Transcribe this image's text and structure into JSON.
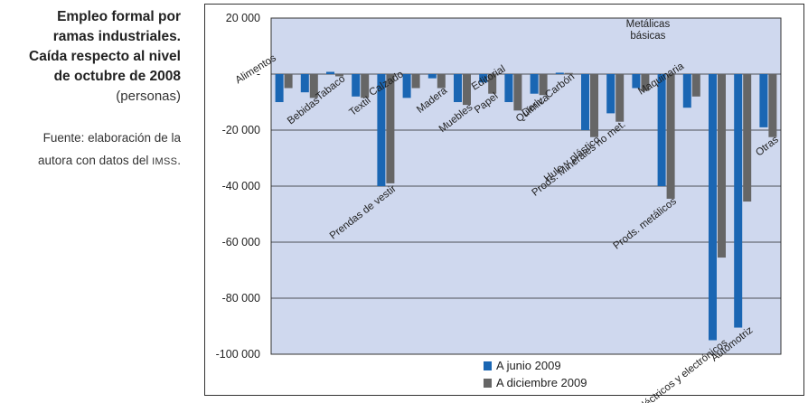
{
  "side": {
    "title_lines": [
      "Empleo formal por",
      "ramas industriales.",
      "Caída respecto al nivel",
      "de octubre de 2008"
    ],
    "unit": "(personas)",
    "source_line1": "Fuente: elaboración de la",
    "source_line2": "autora con datos del",
    "source_acronym": "IMSS",
    "source_end": "."
  },
  "chart_data": {
    "type": "bar",
    "ylim": [
      -100000,
      20000
    ],
    "yticks": [
      "20 000",
      "-",
      "-20 000",
      "-40 000",
      "-60 000",
      "-80 000",
      "-100 000"
    ],
    "grid": true,
    "legend_position": "bottom-center",
    "categories": [
      "Alimentos",
      "Bebidas",
      "Tabaco",
      "Textil",
      "Prendas de vestir",
      "Calzado",
      "Madera",
      "Muebles",
      "Papel",
      "Editorial",
      "Química",
      "Deriv. Carbón",
      "Hule y plástico",
      "Prods. Minerales no met.",
      "Metálicas básicas",
      "Prods. metálicos",
      "Maquinaria",
      "Eléctricos y electrónicos",
      "Automotriz",
      "Otras"
    ],
    "series": [
      {
        "name": "A junio 2009",
        "color": "#1a66b3",
        "values": [
          -10000,
          -6500,
          800,
          -8000,
          -40000,
          -8500,
          -1500,
          -10000,
          -3000,
          -10000,
          -7000,
          500,
          -20000,
          -14000,
          -5000,
          -40000,
          -12000,
          -95000,
          -90500,
          -19000
        ]
      },
      {
        "name": "A diciembre 2009",
        "color": "#666666",
        "values": [
          -5000,
          -8500,
          -800,
          -8500,
          -39000,
          -5000,
          -5000,
          -11000,
          -7000,
          -13000,
          -7500,
          400,
          -22500,
          -17000,
          -6000,
          -44500,
          -8000,
          -65500,
          -45500,
          -22500
        ]
      }
    ]
  }
}
